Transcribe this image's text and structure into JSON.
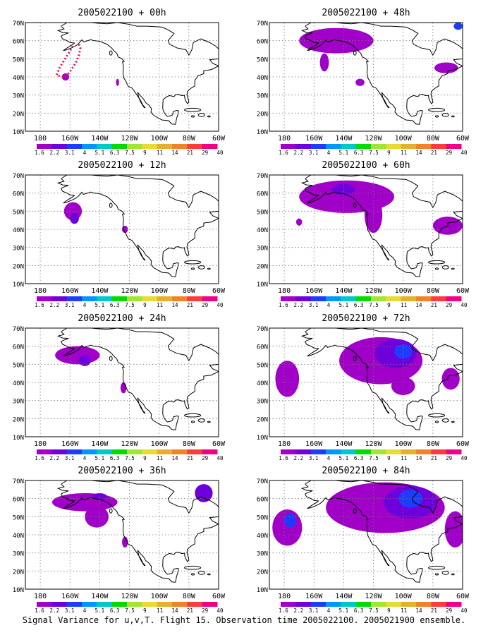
{
  "figure": {
    "caption": "Signal Variance for u,v,T. Flight 15. Observation time 2005022100. 2005021900 ensemble."
  },
  "axes": {
    "lat_labels": [
      "10N",
      "20N",
      "30N",
      "40N",
      "50N",
      "60N",
      "70N"
    ],
    "lon_labels": [
      "180",
      "160W",
      "140W",
      "120W",
      "100W",
      "80W",
      "60W"
    ]
  },
  "colorbar": {
    "labels": [
      "1.6",
      "2.2",
      "3.1",
      "4",
      "5.1",
      "6.3",
      "7.5",
      "9",
      "11",
      "14",
      "21",
      "29",
      "40"
    ],
    "colors": [
      "#a000c8",
      "#6e00dc",
      "#1e3cff",
      "#0096ff",
      "#00c8c8",
      "#00dc00",
      "#a0e632",
      "#e6dc32",
      "#e6af2d",
      "#f08228",
      "#fa3c3c",
      "#f00082"
    ]
  },
  "panels": [
    {
      "title": "2005022100 + 00h",
      "blobs": [
        {
          "lon": -163,
          "lat": 40,
          "rx": 2.5,
          "ry": 2,
          "level": 0
        },
        {
          "lon": -128,
          "lat": 37,
          "rx": 1,
          "ry": 2,
          "level": 0
        }
      ],
      "has_flight_track": true
    },
    {
      "title": "2005022100 + 12h",
      "blobs": [
        {
          "lon": -158,
          "lat": 50,
          "rx": 6,
          "ry": 5,
          "level": 0
        },
        {
          "lon": -157,
          "lat": 46,
          "rx": 3,
          "ry": 3,
          "level": 1
        },
        {
          "lon": -123,
          "lat": 40,
          "rx": 2,
          "ry": 2,
          "level": 0
        }
      ]
    },
    {
      "title": "2005022100 + 24h",
      "blobs": [
        {
          "lon": -155,
          "lat": 55,
          "rx": 15,
          "ry": 5,
          "level": 0
        },
        {
          "lon": -150,
          "lat": 52,
          "rx": 4,
          "ry": 3,
          "level": 1
        },
        {
          "lon": -124,
          "lat": 37,
          "rx": 2,
          "ry": 3,
          "level": 0
        }
      ]
    },
    {
      "title": "2005022100 + 36h",
      "blobs": [
        {
          "lon": -150,
          "lat": 58,
          "rx": 22,
          "ry": 5,
          "level": 0
        },
        {
          "lon": -142,
          "lat": 50,
          "rx": 8,
          "ry": 6,
          "level": 0
        },
        {
          "lon": -140,
          "lat": 61,
          "rx": 5,
          "ry": 2,
          "level": 1
        },
        {
          "lon": -123,
          "lat": 36,
          "rx": 2,
          "ry": 3,
          "level": 0
        },
        {
          "lon": -70,
          "lat": 63,
          "rx": 6,
          "ry": 5,
          "level": 1
        }
      ]
    },
    {
      "title": "2005022100 + 48h",
      "blobs": [
        {
          "lon": -145,
          "lat": 60,
          "rx": 25,
          "ry": 7,
          "level": 0
        },
        {
          "lon": -153,
          "lat": 48,
          "rx": 3,
          "ry": 5,
          "level": 0
        },
        {
          "lon": -129,
          "lat": 37,
          "rx": 3,
          "ry": 2,
          "level": 0
        },
        {
          "lon": -71,
          "lat": 45,
          "rx": 8,
          "ry": 3,
          "level": 0
        },
        {
          "lon": -63,
          "lat": 68,
          "rx": 3,
          "ry": 2,
          "level": 2
        }
      ]
    },
    {
      "title": "2005022100 + 60h",
      "blobs": [
        {
          "lon": -138,
          "lat": 58,
          "rx": 32,
          "ry": 9,
          "level": 0
        },
        {
          "lon": -120,
          "lat": 48,
          "rx": 6,
          "ry": 10,
          "level": 0
        },
        {
          "lon": -140,
          "lat": 62,
          "rx": 8,
          "ry": 3,
          "level": 1
        },
        {
          "lon": -170,
          "lat": 44,
          "rx": 2,
          "ry": 2,
          "level": 0
        },
        {
          "lon": -70,
          "lat": 42,
          "rx": 10,
          "ry": 5,
          "level": 0
        }
      ]
    },
    {
      "title": "2005022100 + 72h",
      "blobs": [
        {
          "lon": -115,
          "lat": 52,
          "rx": 28,
          "ry": 13,
          "level": 0
        },
        {
          "lon": -105,
          "lat": 56,
          "rx": 14,
          "ry": 8,
          "level": 1
        },
        {
          "lon": -100,
          "lat": 57,
          "rx": 6,
          "ry": 4,
          "level": 2
        },
        {
          "lon": -178,
          "lat": 42,
          "rx": 8,
          "ry": 10,
          "level": 0
        },
        {
          "lon": -100,
          "lat": 38,
          "rx": 8,
          "ry": 5,
          "level": 0
        },
        {
          "lon": -68,
          "lat": 42,
          "rx": 6,
          "ry": 6,
          "level": 0
        }
      ]
    },
    {
      "title": "2005022100 + 84h",
      "blobs": [
        {
          "lon": -112,
          "lat": 55,
          "rx": 40,
          "ry": 14,
          "level": 0
        },
        {
          "lon": -95,
          "lat": 58,
          "rx": 18,
          "ry": 9,
          "level": 1
        },
        {
          "lon": -95,
          "lat": 60,
          "rx": 8,
          "ry": 5,
          "level": 2
        },
        {
          "lon": -178,
          "lat": 44,
          "rx": 10,
          "ry": 10,
          "level": 0
        },
        {
          "lon": -176,
          "lat": 48,
          "rx": 4,
          "ry": 4,
          "level": 2
        },
        {
          "lon": -65,
          "lat": 43,
          "rx": 7,
          "ry": 10,
          "level": 0
        }
      ]
    }
  ]
}
